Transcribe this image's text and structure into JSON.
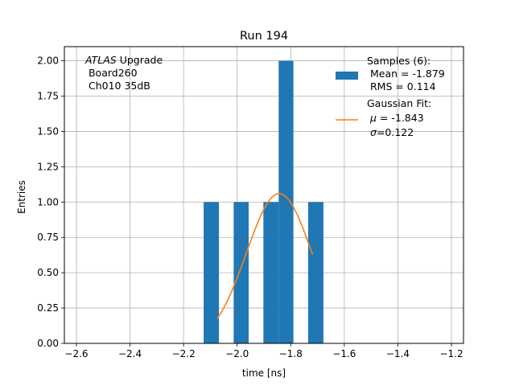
{
  "chart_data": {
    "type": "bar",
    "title": "Run 194",
    "xlabel": "time [ns]",
    "ylabel": "Entries",
    "xlim": [
      -2.645,
      -1.155
    ],
    "ylim": [
      0,
      2.1
    ],
    "grid": true,
    "xticks": [
      -2.6,
      -2.4,
      -2.2,
      -2.0,
      -1.8,
      -1.6,
      -1.4,
      -1.2
    ],
    "xtick_labels": [
      "−2.6",
      "−2.4",
      "−2.2",
      "−2.0",
      "−1.8",
      "−1.6",
      "−1.4",
      "−1.2"
    ],
    "yticks": [
      0.0,
      0.25,
      0.5,
      0.75,
      1.0,
      1.25,
      1.5,
      1.75,
      2.0
    ],
    "ytick_labels": [
      "0.00",
      "0.25",
      "0.50",
      "0.75",
      "1.00",
      "1.25",
      "1.50",
      "1.75",
      "2.00"
    ],
    "bins": [
      {
        "x0": -2.125,
        "x1": -2.068,
        "value": 1
      },
      {
        "x0": -2.013,
        "x1": -1.957,
        "value": 1
      },
      {
        "x0": -1.902,
        "x1": -1.845,
        "value": 1
      },
      {
        "x0": -1.845,
        "x1": -1.79,
        "value": 2
      },
      {
        "x0": -1.735,
        "x1": -1.678,
        "value": 1
      }
    ],
    "histogram_color": "#1f77b4",
    "fit": {
      "mu": -1.843,
      "sigma": 0.122,
      "amplitude": 1.06,
      "x_range": [
        -2.075,
        -1.718
      ],
      "color": "#ff7f0e"
    },
    "annotation": {
      "line1_italic": "ATLAS",
      "line1_rest": " Upgrade",
      "line2": " Board260",
      "line3": " Ch010 35dB"
    },
    "legend": {
      "placement": "top-right",
      "histogram_lines": [
        "Samples (6):",
        " Mean = -1.879",
        " RMS = 0.114"
      ],
      "fit_line1": "Gaussian Fit:",
      "fit_mu_symbol": "μ",
      "fit_mu_rest": " = -1.843",
      "fit_sigma_symbol": "σ",
      "fit_sigma_rest": "=0.122"
    }
  }
}
